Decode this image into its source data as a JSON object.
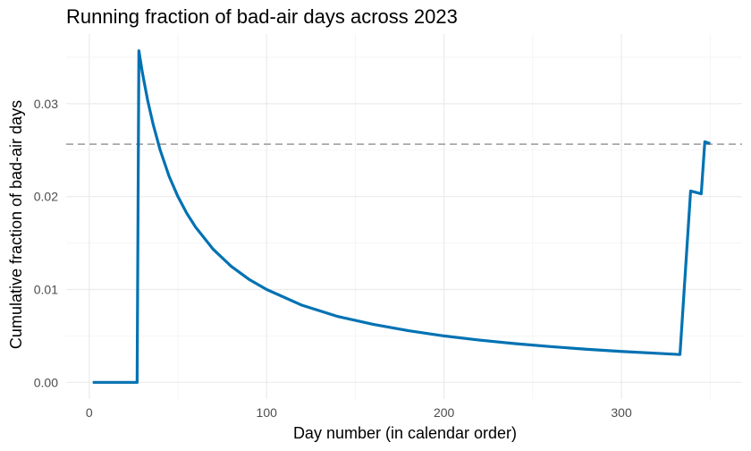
{
  "chart_data": {
    "type": "line",
    "title": "Running fraction of bad-air days across 2023",
    "xlabel": "Day number (in calendar order)",
    "ylabel": "Cumulative fraction of bad-air days",
    "xlim": [
      -13,
      368
    ],
    "ylim": [
      -0.0018,
      0.0375
    ],
    "x_ticks": [
      0,
      100,
      200,
      300
    ],
    "x_tick_labels": [
      "0",
      "100",
      "200",
      "300"
    ],
    "x_minor_ticks": [
      50,
      150,
      250,
      350
    ],
    "y_ticks": [
      0,
      0.01,
      0.02,
      0.03
    ],
    "y_tick_labels": [
      "0.00",
      "0.01",
      "0.02",
      "0.03"
    ],
    "y_minor_ticks": [
      0.005,
      0.015,
      0.025,
      0.035
    ],
    "grid": true,
    "reference_line": {
      "orientation": "horizontal",
      "y": 0.02564,
      "style": "dashed",
      "color": "#999999"
    },
    "series": [
      {
        "color": "#0072B2",
        "x": [
          2,
          27,
          28,
          30,
          33,
          36,
          40,
          45,
          50,
          55,
          60,
          70,
          80,
          90,
          100,
          120,
          140,
          160,
          180,
          200,
          220,
          240,
          260,
          280,
          300,
          320,
          333,
          339,
          345,
          347,
          350
        ],
        "y": [
          0,
          0,
          0.0357,
          0.0333,
          0.0303,
          0.0278,
          0.025,
          0.0222,
          0.02,
          0.0182,
          0.0167,
          0.0143,
          0.0125,
          0.0111,
          0.01,
          0.0083,
          0.0071,
          0.00625,
          0.00556,
          0.005,
          0.00455,
          0.00417,
          0.00385,
          0.00357,
          0.00333,
          0.00313,
          0.003,
          0.0206,
          0.0203,
          0.0259,
          0.0257
        ]
      }
    ]
  }
}
